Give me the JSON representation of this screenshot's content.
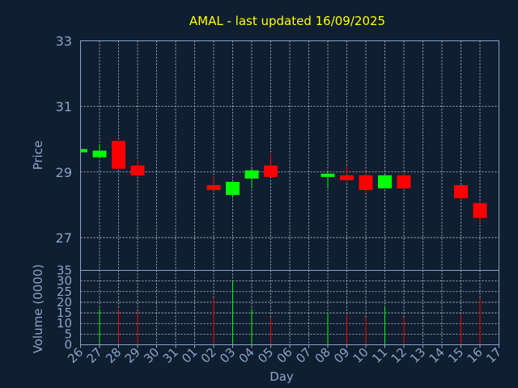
{
  "chart_data": [
    {
      "type": "candlestick",
      "title": "AMAL - last updated 16/09/2025",
      "ylabel": "Price",
      "ylim": [
        26,
        33
      ],
      "yticks": [
        27,
        29,
        31,
        33
      ],
      "grid": true,
      "colors": {
        "up": "#00ff00",
        "down": "#ff0000",
        "background": "#0f1e30",
        "axis": "#8aa4c8",
        "title": "#ffff00"
      },
      "candles": [
        {
          "x": "26",
          "open": 29.6,
          "high": 29.7,
          "low": 29.55,
          "close": 29.7
        },
        {
          "x": "27",
          "open": 29.45,
          "high": 29.85,
          "low": 29.4,
          "close": 29.65
        },
        {
          "x": "28",
          "open": 29.95,
          "high": 29.95,
          "low": 29.1,
          "close": 29.1
        },
        {
          "x": "29",
          "open": 29.2,
          "high": 29.35,
          "low": 28.85,
          "close": 28.9
        },
        {
          "x": "02",
          "open": 28.6,
          "high": 28.85,
          "low": 28.45,
          "close": 28.45
        },
        {
          "x": "03",
          "open": 28.3,
          "high": 28.7,
          "low": 28.2,
          "close": 28.7
        },
        {
          "x": "04",
          "open": 28.8,
          "high": 29.1,
          "low": 28.5,
          "close": 29.05
        },
        {
          "x": "05",
          "open": 29.2,
          "high": 29.55,
          "low": 28.85,
          "close": 28.85
        },
        {
          "x": "08",
          "open": 28.85,
          "high": 29.0,
          "low": 28.5,
          "close": 28.95
        },
        {
          "x": "09",
          "open": 28.9,
          "high": 29.2,
          "low": 28.7,
          "close": 28.75
        },
        {
          "x": "10",
          "open": 28.9,
          "high": 29.0,
          "low": 28.35,
          "close": 28.45
        },
        {
          "x": "11",
          "open": 28.5,
          "high": 28.9,
          "low": 28.5,
          "close": 28.9
        },
        {
          "x": "12",
          "open": 28.9,
          "high": 28.95,
          "low": 28.45,
          "close": 28.5
        },
        {
          "x": "15",
          "open": 28.6,
          "high": 28.6,
          "low": 28.15,
          "close": 28.2
        },
        {
          "x": "16",
          "open": 28.05,
          "high": 28.05,
          "low": 27.45,
          "close": 27.6
        }
      ]
    },
    {
      "type": "bar",
      "xlabel": "Day",
      "ylabel": "Volume (0000)",
      "ylim": [
        0,
        35
      ],
      "yticks": [
        0,
        5,
        10,
        15,
        20,
        25,
        30,
        35
      ],
      "categories": [
        "26",
        "27",
        "28",
        "29",
        "30",
        "31",
        "01",
        "02",
        "03",
        "04",
        "05",
        "06",
        "07",
        "08",
        "09",
        "10",
        "11",
        "12",
        "13",
        "14",
        "15",
        "16",
        "17"
      ],
      "values": [
        0,
        17,
        17,
        16,
        0,
        0,
        0,
        22,
        30,
        17,
        13,
        0,
        0,
        15,
        14,
        13,
        18,
        13,
        0,
        0,
        14,
        22,
        0
      ],
      "direction": [
        "",
        "up",
        "down",
        "down",
        "",
        "",
        "",
        "down",
        "up",
        "up",
        "down",
        "",
        "",
        "up",
        "down",
        "down",
        "up",
        "down",
        "",
        "",
        "down",
        "down",
        ""
      ]
    }
  ]
}
